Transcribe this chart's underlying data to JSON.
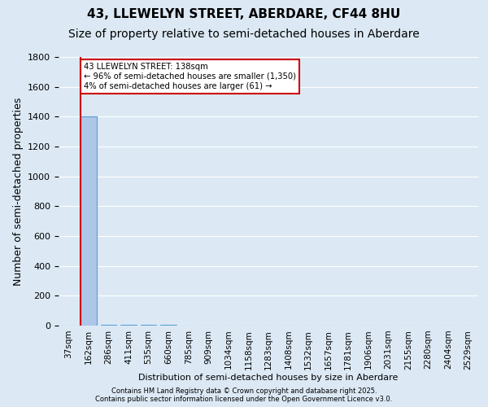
{
  "title_line1": "43, LLEWELYN STREET, ABERDARE, CF44 8HU",
  "title_line2": "Size of property relative to semi-detached houses in Aberdare",
  "xlabel": "Distribution of semi-detached houses by size in Aberdare",
  "ylabel": "Number of semi-detached properties",
  "categories": [
    "37sqm",
    "162sqm",
    "286sqm",
    "411sqm",
    "535sqm",
    "660sqm",
    "785sqm",
    "909sqm",
    "1034sqm",
    "1158sqm",
    "1283sqm",
    "1408sqm",
    "1532sqm",
    "1657sqm",
    "1781sqm",
    "1906sqm",
    "2031sqm",
    "2155sqm",
    "2280sqm",
    "2404sqm",
    "2529sqm"
  ],
  "values": [
    2,
    1400,
    8,
    5,
    4,
    3,
    2,
    2,
    2,
    1,
    1,
    1,
    1,
    1,
    1,
    1,
    1,
    1,
    1,
    1,
    1
  ],
  "bar_color": "#aec6e8",
  "bar_edge_color": "#5a9fd4",
  "annotation_text": "43 LLEWELYN STREET: 138sqm\n← 96% of semi-detached houses are smaller (1,350)\n4% of semi-detached houses are larger (61) →",
  "annotation_box_color": "#ffffff",
  "annotation_box_edge_color": "#cc0000",
  "vline_color": "#cc0000",
  "vline_x": 0.6,
  "ylim": [
    0,
    1800
  ],
  "background_color": "#dce9f5",
  "plot_bg_color": "#dce9f5",
  "footer_line1": "Contains HM Land Registry data © Crown copyright and database right 2025.",
  "footer_line2": "Contains public sector information licensed under the Open Government Licence v3.0.",
  "grid_color": "#ffffff",
  "title_fontsize": 11,
  "subtitle_fontsize": 10,
  "tick_fontsize": 7.5,
  "ylabel_fontsize": 9
}
